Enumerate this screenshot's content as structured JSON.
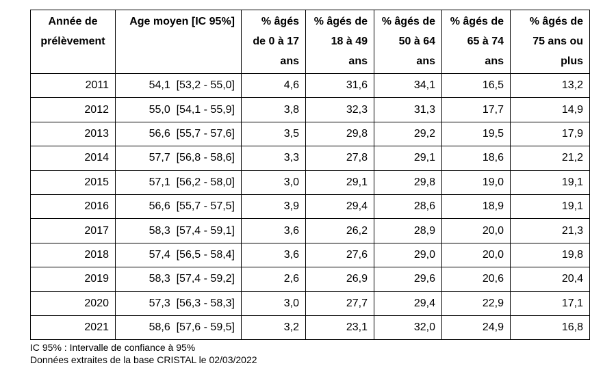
{
  "table": {
    "columns": [
      "Année de prélèvement",
      "Age moyen [IC 95%]",
      "% âgés de 0 à 17 ans",
      "% âgés de 18 à 49 ans",
      "% âgés de 50 à 64 ans",
      "% âgés de 65 à 74 ans",
      "% âgés de 75 ans ou plus"
    ],
    "rows": [
      [
        "2011",
        "54,1  [53,2 - 55,0]",
        "4,6",
        "31,6",
        "34,1",
        "16,5",
        "13,2"
      ],
      [
        "2012",
        "55,0  [54,1 - 55,9]",
        "3,8",
        "32,3",
        "31,3",
        "17,7",
        "14,9"
      ],
      [
        "2013",
        "56,6  [55,7 - 57,6]",
        "3,5",
        "29,8",
        "29,2",
        "19,5",
        "17,9"
      ],
      [
        "2014",
        "57,7  [56,8 - 58,6]",
        "3,3",
        "27,8",
        "29,1",
        "18,6",
        "21,2"
      ],
      [
        "2015",
        "57,1  [56,2 - 58,0]",
        "3,0",
        "29,1",
        "29,8",
        "19,0",
        "19,1"
      ],
      [
        "2016",
        "56,6  [55,7 - 57,5]",
        "3,9",
        "29,4",
        "28,6",
        "18,9",
        "19,1"
      ],
      [
        "2017",
        "58,3  [57,4 - 59,1]",
        "3,6",
        "26,2",
        "28,9",
        "20,0",
        "21,3"
      ],
      [
        "2018",
        "57,4  [56,5 - 58,4]",
        "3,6",
        "27,6",
        "29,0",
        "20,0",
        "19,8"
      ],
      [
        "2019",
        "58,3  [57,4 - 59,2]",
        "2,6",
        "26,9",
        "29,6",
        "20,6",
        "20,4"
      ],
      [
        "2020",
        "57,3  [56,3 - 58,3]",
        "3,0",
        "27,7",
        "29,4",
        "22,9",
        "17,1"
      ],
      [
        "2021",
        "58,6  [57,6 - 59,5]",
        "3,2",
        "23,1",
        "32,0",
        "24,9",
        "16,8"
      ]
    ]
  },
  "footnotes": [
    "IC 95% : Intervalle de confiance à 95%",
    "Données extraites de la base CRISTAL le 02/03/2022"
  ]
}
